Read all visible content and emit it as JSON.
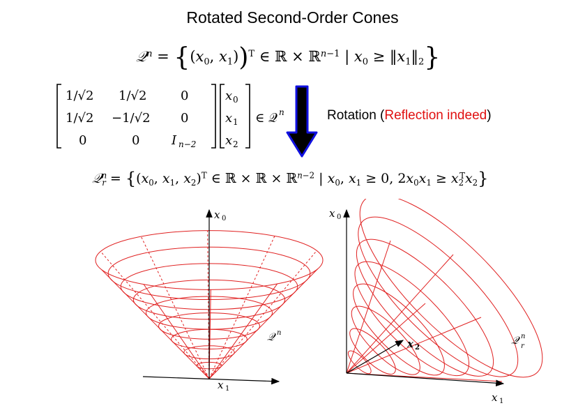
{
  "title": "Rotated Second-Order Cones",
  "rotation_label": {
    "prefix": "Rotation (",
    "highlight": "Reflection indeed",
    "suffix": ")",
    "highlight_color": "#e01010"
  },
  "matrix": {
    "rows": [
      [
        "1/√2",
        "1/√2",
        "0"
      ],
      [
        "1/√2",
        "−1/√2",
        "0"
      ],
      [
        "0",
        "0",
        "I"
      ]
    ],
    "identity_subscript": "n−2",
    "vector": [
      "x",
      "x",
      "x"
    ],
    "vector_subscripts": [
      "0",
      "1",
      "2"
    ],
    "membership": "∈ 𝒬",
    "membership_sup": "n"
  },
  "cone_labels": {
    "left_axis_top": "x",
    "left_axis_top_sub": "0",
    "left_axis_bottom": "x",
    "left_axis_bottom_sub": "1",
    "left_cone": "𝒬",
    "left_cone_sup": "n",
    "right_axis_top": "x",
    "right_axis_top_sub": "0",
    "right_axis_mid": "x",
    "right_axis_mid_sub": "2",
    "right_axis_bottom": "x",
    "right_axis_bottom_sub": "1",
    "right_cone": "𝒬",
    "right_cone_sup": "n",
    "right_cone_sub": "r"
  },
  "colors": {
    "cone_stroke": "#e02020",
    "arrow_fill": "#000000",
    "arrow_stroke": "#1010e0"
  }
}
